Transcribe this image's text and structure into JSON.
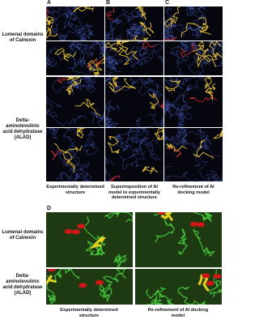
{
  "panel_labels": [
    "A",
    "B",
    "C",
    "D"
  ],
  "top_rows": [
    "Lumenal domains of Calnexin",
    "Delta-aminolevulinic acid dehydratase (ALAD)"
  ],
  "top_captions": [
    "Experimentally determined structure",
    "Superimposition of AI model to experimentally determined structure",
    "Re-refinement of AI docking model"
  ],
  "bottom_rows": [
    "Lumenal domains of Calnexin",
    "Delta-aminolevulinic acid dehydratase (ALAD)"
  ],
  "bottom_captions": [
    "Experimentally determined structure",
    "Re-refinement of AI docking model"
  ]
}
